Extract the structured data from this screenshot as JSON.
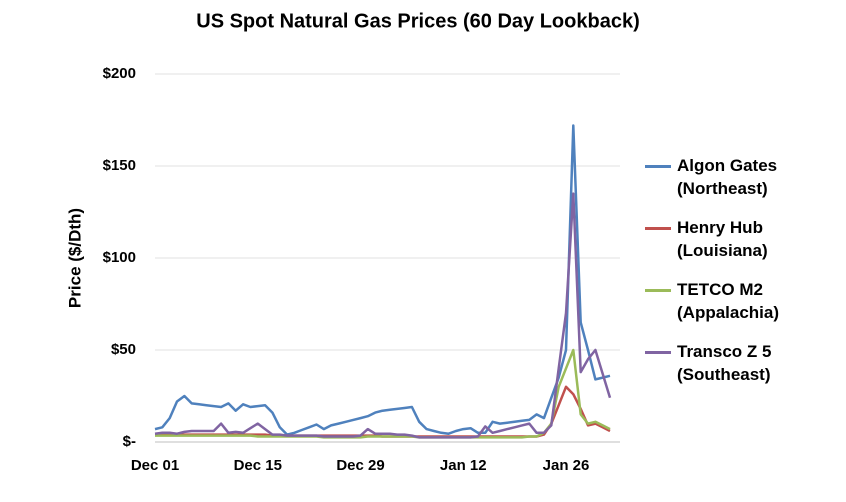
{
  "chart_data": {
    "type": "line",
    "title": "US Spot Natural Gas Prices (60 Day Lookback)",
    "y_label": "Price ($/Dth)",
    "categories": [
      "Dec 01",
      null,
      null,
      null,
      null,
      null,
      null,
      null,
      null,
      null,
      null,
      null,
      null,
      null,
      "Dec 15",
      null,
      null,
      null,
      null,
      null,
      null,
      null,
      null,
      null,
      null,
      null,
      null,
      null,
      "Dec 29",
      null,
      null,
      null,
      null,
      null,
      null,
      null,
      null,
      null,
      null,
      null,
      null,
      null,
      "Jan 12",
      null,
      null,
      null,
      null,
      null,
      null,
      null,
      null,
      null,
      null,
      null,
      null,
      null,
      "Jan 26",
      null,
      null,
      null,
      null,
      null,
      null
    ],
    "ylim": [
      0,
      200
    ],
    "yticks": [
      {
        "value": 0,
        "label": "$-"
      },
      {
        "value": 50,
        "label": "$50"
      },
      {
        "value": 100,
        "label": "$100"
      },
      {
        "value": 150,
        "label": "$150"
      },
      {
        "value": 200,
        "label": "$200"
      }
    ],
    "grid": true,
    "legend": "right",
    "series": [
      {
        "name": "Algon Gates (Northeast)",
        "color": "#4f81bd",
        "values": [
          7,
          8,
          13,
          22,
          25,
          21,
          20.5,
          20,
          19.5,
          19,
          21,
          17,
          20.5,
          19,
          19.5,
          20,
          16,
          8,
          4,
          5,
          6.5,
          8,
          9.5,
          7,
          9,
          10,
          11,
          12,
          13,
          14,
          16,
          17,
          17.5,
          18,
          18.5,
          19,
          11,
          7,
          6,
          5,
          4.5,
          6,
          7,
          7.5,
          5,
          5,
          11,
          10,
          10.5,
          11,
          11.5,
          12,
          15,
          13,
          24,
          35,
          50,
          172,
          65,
          50,
          34,
          35,
          36
        ]
      },
      {
        "name": "Henry Hub (Louisiana)",
        "color": "#c0504d",
        "values": [
          4,
          4,
          4,
          4,
          4,
          4,
          4,
          4,
          4,
          4,
          4,
          4,
          4,
          4,
          4,
          4,
          3.5,
          3.5,
          3.5,
          3.5,
          3.5,
          3.5,
          3.5,
          3.5,
          3.5,
          3.5,
          3.5,
          3.5,
          3.5,
          3.5,
          3.5,
          3,
          3,
          3,
          3,
          3,
          3,
          3,
          3,
          3,
          3,
          3,
          3,
          3,
          3,
          3,
          3,
          3,
          3,
          3,
          3,
          3,
          3,
          4,
          10,
          20,
          30,
          26,
          18,
          9,
          10,
          8,
          6
        ]
      },
      {
        "name": "TETCO M2 (Appalachia)",
        "color": "#9bbb59",
        "values": [
          3.5,
          3.5,
          3.5,
          3.5,
          3.5,
          3.5,
          3.5,
          3.5,
          3.5,
          3.5,
          3.5,
          3.5,
          3.5,
          3.5,
          3,
          3,
          3,
          3,
          3,
          3,
          3,
          3,
          3,
          2.5,
          2.5,
          2.5,
          2.5,
          2.5,
          2.5,
          3,
          3,
          3,
          3,
          3,
          3,
          3,
          2.5,
          2.5,
          2.5,
          2.5,
          2.5,
          2.5,
          2.5,
          2.5,
          2.5,
          2.5,
          2.5,
          2.5,
          2.5,
          2.5,
          2.5,
          3,
          3,
          5,
          10,
          30,
          40,
          50,
          15,
          10,
          11,
          9,
          7
        ]
      },
      {
        "name": "Transco Z 5 (Southeast)",
        "color": "#8064a2",
        "values": [
          4.5,
          5,
          5,
          4.5,
          5.5,
          6,
          6,
          6,
          6,
          10,
          5,
          5.5,
          5,
          7.5,
          10,
          7,
          4,
          4,
          3.5,
          3.5,
          3.5,
          3.5,
          3.5,
          3,
          3,
          3,
          3,
          3,
          3.5,
          7,
          4.5,
          4.5,
          4.5,
          4,
          4,
          3.5,
          2.5,
          2.5,
          2.5,
          2.5,
          2.5,
          2.5,
          2.5,
          2.5,
          3,
          8.5,
          5,
          6,
          7,
          8,
          9,
          10,
          5,
          5,
          9,
          40,
          70,
          135,
          38,
          45,
          50,
          37,
          24
        ]
      }
    ]
  }
}
